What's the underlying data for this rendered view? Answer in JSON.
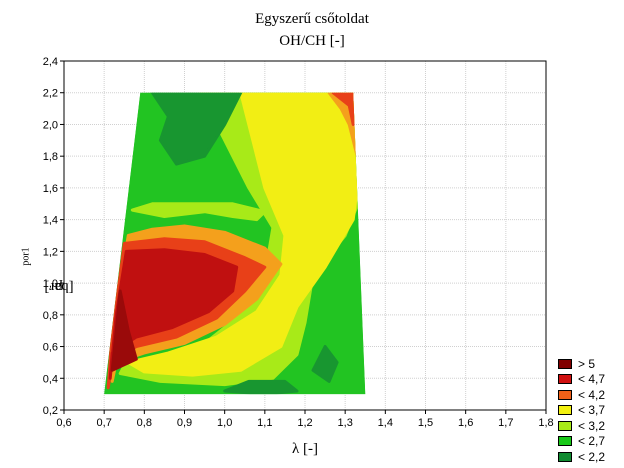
{
  "chart_data": {
    "type": "heatmap",
    "title": "Egyszerű csőtoldat",
    "subtitle": "OH/CH [-]",
    "xlabel": "λ [-]",
    "ylabel_main": "p",
    "ylabel_sub": "por1",
    "ylabel_unit": " [bar]",
    "xlim": [
      0.6,
      1.8
    ],
    "ylim": [
      0.2,
      2.4
    ],
    "xticks": [
      "0,6",
      "0,7",
      "0,8",
      "0,9",
      "1,0",
      "1,1",
      "1,2",
      "1,3",
      "1,4",
      "1,5",
      "1,6",
      "1,7",
      "1,8"
    ],
    "yticks": [
      "0,2",
      "0,4",
      "0,6",
      "0,8",
      "1,0",
      "1,2",
      "1,4",
      "1,6",
      "1,8",
      "2,0",
      "2,2",
      "2,4"
    ],
    "grid": true,
    "legend_placement": "bottom-right",
    "domain_polygon": [
      [
        0.7,
        0.3
      ],
      [
        0.79,
        2.2
      ],
      [
        1.32,
        2.2
      ],
      [
        1.35,
        0.3
      ]
    ],
    "legend": [
      {
        "label": "> 5",
        "color": "#800000"
      },
      {
        "label": "< 4,7",
        "color": "#d01010"
      },
      {
        "label": "< 4,2",
        "color": "#f06018"
      },
      {
        "label": "< 3,7",
        "color": "#f2f010"
      },
      {
        "label": "< 3,2",
        "color": "#a8ea18"
      },
      {
        "label": "< 2,7",
        "color": "#18c818"
      },
      {
        "label": "< 2,2",
        "color": "#108a30"
      }
    ],
    "regions": [
      {
        "level": "< 2,7",
        "color": "#22c422",
        "points": [
          [
            0.7,
            0.3
          ],
          [
            0.79,
            2.2
          ],
          [
            1.32,
            2.2
          ],
          [
            1.35,
            0.3
          ]
        ]
      },
      {
        "level": "< 3,2",
        "color": "#a8ea18",
        "points": [
          [
            0.94,
            2.2
          ],
          [
            1.0,
            1.9
          ],
          [
            1.06,
            1.6
          ],
          [
            1.12,
            1.35
          ],
          [
            1.1,
            1.05
          ],
          [
            1.04,
            0.8
          ],
          [
            0.95,
            0.62
          ],
          [
            0.84,
            0.52
          ],
          [
            0.75,
            0.48
          ],
          [
            0.74,
            0.43
          ],
          [
            0.84,
            0.38
          ],
          [
            1.0,
            0.36
          ],
          [
            1.12,
            0.4
          ],
          [
            1.18,
            0.55
          ],
          [
            1.2,
            0.75
          ],
          [
            1.22,
            1.05
          ],
          [
            1.3,
            1.3
          ],
          [
            1.34,
            1.55
          ],
          [
            1.33,
            2.2
          ]
        ]
      },
      {
        "level": "< 3,7",
        "color": "#f2ee14",
        "points": [
          [
            1.04,
            2.2
          ],
          [
            1.07,
            1.9
          ],
          [
            1.1,
            1.6
          ],
          [
            1.15,
            1.3
          ],
          [
            1.14,
            1.05
          ],
          [
            1.08,
            0.82
          ],
          [
            0.98,
            0.66
          ],
          [
            0.86,
            0.56
          ],
          [
            0.76,
            0.5
          ],
          [
            0.8,
            0.44
          ],
          [
            0.92,
            0.42
          ],
          [
            1.04,
            0.45
          ],
          [
            1.14,
            0.6
          ],
          [
            1.18,
            0.85
          ],
          [
            1.25,
            1.1
          ],
          [
            1.32,
            1.4
          ],
          [
            1.34,
            1.8
          ],
          [
            1.32,
            2.2
          ]
        ]
      },
      {
        "level": "< 4,2",
        "color": "#f4a01c",
        "points": [
          [
            0.76,
            1.3
          ],
          [
            0.82,
            1.34
          ],
          [
            0.9,
            1.36
          ],
          [
            1.0,
            1.32
          ],
          [
            1.1,
            1.22
          ],
          [
            1.14,
            1.12
          ],
          [
            1.08,
            0.9
          ],
          [
            1.0,
            0.74
          ],
          [
            0.9,
            0.62
          ],
          [
            0.8,
            0.56
          ],
          [
            0.73,
            0.5
          ],
          [
            0.72,
            0.38
          ],
          [
            0.72,
            0.6
          ],
          [
            0.74,
            1.0
          ]
        ]
      },
      {
        "level": "< 4,7",
        "color": "#e84018",
        "points": [
          [
            0.75,
            1.25
          ],
          [
            0.85,
            1.28
          ],
          [
            0.95,
            1.26
          ],
          [
            1.05,
            1.16
          ],
          [
            1.1,
            1.1
          ],
          [
            1.05,
            0.95
          ],
          [
            0.98,
            0.78
          ],
          [
            0.88,
            0.66
          ],
          [
            0.78,
            0.6
          ],
          [
            0.72,
            0.5
          ],
          [
            0.71,
            0.34
          ],
          [
            0.72,
            0.7
          ],
          [
            0.74,
            1.05
          ]
        ]
      },
      {
        "level": "> 5",
        "color": "#c01010",
        "points": [
          [
            0.755,
            1.2
          ],
          [
            0.85,
            1.21
          ],
          [
            0.95,
            1.18
          ],
          [
            1.03,
            1.1
          ],
          [
            1.02,
            0.95
          ],
          [
            0.96,
            0.82
          ],
          [
            0.87,
            0.72
          ],
          [
            0.78,
            0.66
          ],
          [
            0.72,
            0.56
          ],
          [
            0.715,
            0.4
          ],
          [
            0.73,
            0.8
          ]
        ]
      },
      {
        "level": "> 5",
        "color": "#9a0a0a",
        "points": [
          [
            0.72,
            0.45
          ],
          [
            0.78,
            0.52
          ],
          [
            0.76,
            0.7
          ],
          [
            0.74,
            0.95
          ],
          [
            0.73,
            0.7
          ]
        ]
      },
      {
        "level": "< 4,2",
        "color": "#f4a01c",
        "points": [
          [
            1.26,
            2.2
          ],
          [
            1.29,
            2.1
          ],
          [
            1.31,
            2.0
          ],
          [
            1.33,
            1.8
          ],
          [
            1.33,
            2.2
          ]
        ]
      },
      {
        "level": "< 4,7",
        "color": "#e84018",
        "points": [
          [
            1.27,
            2.2
          ],
          [
            1.31,
            2.12
          ],
          [
            1.32,
            2.0
          ],
          [
            1.33,
            2.2
          ]
        ]
      },
      {
        "level": "< 2,2",
        "color": "#189630",
        "points": [
          [
            0.82,
            2.2
          ],
          [
            0.86,
            2.05
          ],
          [
            0.84,
            1.9
          ],
          [
            0.88,
            1.75
          ],
          [
            0.95,
            1.8
          ],
          [
            1.0,
            2.0
          ],
          [
            1.04,
            2.2
          ]
        ]
      },
      {
        "level": "< 2,2",
        "color": "#189630",
        "points": [
          [
            1.0,
            0.32
          ],
          [
            1.1,
            0.3
          ],
          [
            1.18,
            0.32
          ],
          [
            1.15,
            0.38
          ],
          [
            1.06,
            0.38
          ]
        ]
      },
      {
        "level": "< 2,2",
        "color": "#189630",
        "points": [
          [
            1.22,
            0.45
          ],
          [
            1.25,
            0.6
          ],
          [
            1.28,
            0.5
          ],
          [
            1.26,
            0.38
          ]
        ]
      },
      {
        "level": "< 3,2",
        "color": "#a8ea18",
        "points": [
          [
            0.77,
            1.46
          ],
          [
            0.85,
            1.42
          ],
          [
            0.95,
            1.45
          ],
          [
            1.02,
            1.42
          ],
          [
            1.08,
            1.4
          ],
          [
            1.1,
            1.45
          ],
          [
            1.02,
            1.5
          ],
          [
            0.92,
            1.5
          ],
          [
            0.82,
            1.5
          ]
        ]
      }
    ]
  }
}
